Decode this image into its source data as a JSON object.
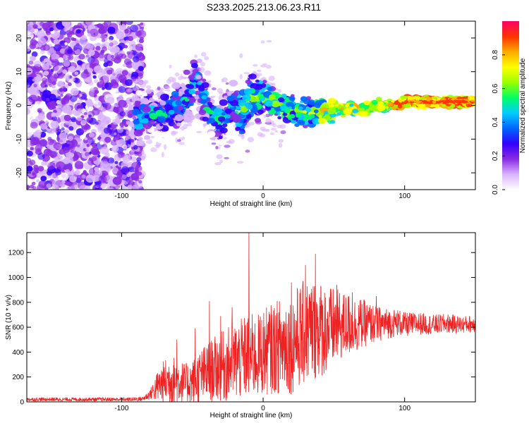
{
  "title": "S233.2025.213.06.23.R11",
  "chart_data": [
    {
      "type": "heatmap",
      "xlabel": "Height of straight line (km)",
      "ylabel": "Frequency (Hz)",
      "xlim": [
        -167,
        150
      ],
      "ylim": [
        -25,
        25
      ],
      "xticks": [
        -100,
        0,
        100
      ],
      "yticks": [
        -20,
        -10,
        0,
        10,
        20
      ],
      "colorbar": {
        "label": "Normalized spectral amplitude",
        "range": [
          0,
          1
        ],
        "ticks": [
          "0.0",
          "0.2",
          "0.4",
          "0.6",
          "0.8"
        ],
        "colormap": [
          "#ffffff",
          "#d9b3ff",
          "#8a2be2",
          "#3300ff",
          "#0066ff",
          "#00ccff",
          "#00ff66",
          "#99ff00",
          "#ffff00",
          "#ffaa00",
          "#ff3300",
          "#ff0066"
        ]
      },
      "signal_track": [
        {
          "x": -88,
          "f": -4
        },
        {
          "x": -80,
          "f": -2
        },
        {
          "x": -70,
          "f": -3
        },
        {
          "x": -60,
          "f": 0
        },
        {
          "x": -52,
          "f": 3
        },
        {
          "x": -48,
          "f": 8
        },
        {
          "x": -44,
          "f": 4
        },
        {
          "x": -38,
          "f": -2
        },
        {
          "x": -30,
          "f": -5
        },
        {
          "x": -22,
          "f": 0
        },
        {
          "x": -15,
          "f": -2
        },
        {
          "x": -8,
          "f": 2
        },
        {
          "x": 0,
          "f": 3
        },
        {
          "x": 10,
          "f": 0
        },
        {
          "x": 20,
          "f": -1
        },
        {
          "x": 30,
          "f": -2
        },
        {
          "x": 40,
          "f": -2
        },
        {
          "x": 50,
          "f": -1
        },
        {
          "x": 60,
          "f": -1
        },
        {
          "x": 70,
          "f": -1
        },
        {
          "x": 80,
          "f": 0
        },
        {
          "x": 90,
          "f": 0
        },
        {
          "x": 100,
          "f": 1
        },
        {
          "x": 110,
          "f": 1
        },
        {
          "x": 120,
          "f": 1
        },
        {
          "x": 130,
          "f": 1
        },
        {
          "x": 148,
          "f": 1
        }
      ]
    },
    {
      "type": "line",
      "xlabel": "Height of straight line (km)",
      "ylabel": "SNR (10 * v/v)",
      "xlim": [
        -167,
        150
      ],
      "ylim": [
        0,
        1360
      ],
      "xticks": [
        -100,
        0,
        100
      ],
      "yticks": [
        0,
        200,
        400,
        600,
        800,
        1000,
        1200
      ],
      "color": "#ee2222",
      "series": [
        {
          "x": [
            -167,
            -150,
            -130,
            -110,
            -95,
            -85,
            -80,
            -75,
            -70,
            -65,
            -60,
            -55,
            -50,
            -45,
            -40,
            -35,
            -30,
            -25,
            -20,
            -15,
            -10,
            -5,
            0,
            5,
            10,
            15,
            20,
            25,
            30,
            35,
            40,
            45,
            50,
            55,
            60,
            65,
            70,
            75,
            80,
            85,
            90,
            95,
            100,
            110,
            120,
            130,
            140,
            150
          ],
          "mean": [
            20,
            20,
            20,
            20,
            20,
            25,
            60,
            120,
            160,
            180,
            170,
            150,
            160,
            200,
            230,
            260,
            280,
            300,
            330,
            340,
            380,
            360,
            400,
            420,
            440,
            470,
            480,
            520,
            560,
            580,
            590,
            580,
            600,
            610,
            620,
            620,
            630,
            630,
            620,
            630,
            630,
            640,
            620,
            630,
            620,
            630,
            620,
            630
          ],
          "amplitude": [
            15,
            15,
            15,
            15,
            15,
            20,
            40,
            120,
            180,
            200,
            180,
            160,
            180,
            220,
            240,
            260,
            280,
            300,
            320,
            330,
            350,
            330,
            350,
            360,
            380,
            400,
            420,
            420,
            430,
            420,
            400,
            360,
            320,
            280,
            260,
            230,
            200,
            170,
            150,
            130,
            120,
            110,
            100,
            90,
            80,
            80,
            70,
            70
          ],
          "peaks": [
            {
              "x": -61,
              "y": 500
            },
            {
              "x": -48,
              "y": 590
            },
            {
              "x": -38,
              "y": 810
            },
            {
              "x": -30,
              "y": 690
            },
            {
              "x": -22,
              "y": 760
            },
            {
              "x": -10,
              "y": 1360
            },
            {
              "x": 20,
              "y": 960
            },
            {
              "x": 30,
              "y": 1100
            },
            {
              "x": 37,
              "y": 1190
            },
            {
              "x": 52,
              "y": 940
            },
            {
              "x": 63,
              "y": 880
            },
            {
              "x": 80,
              "y": 850
            }
          ]
        }
      ]
    }
  ]
}
